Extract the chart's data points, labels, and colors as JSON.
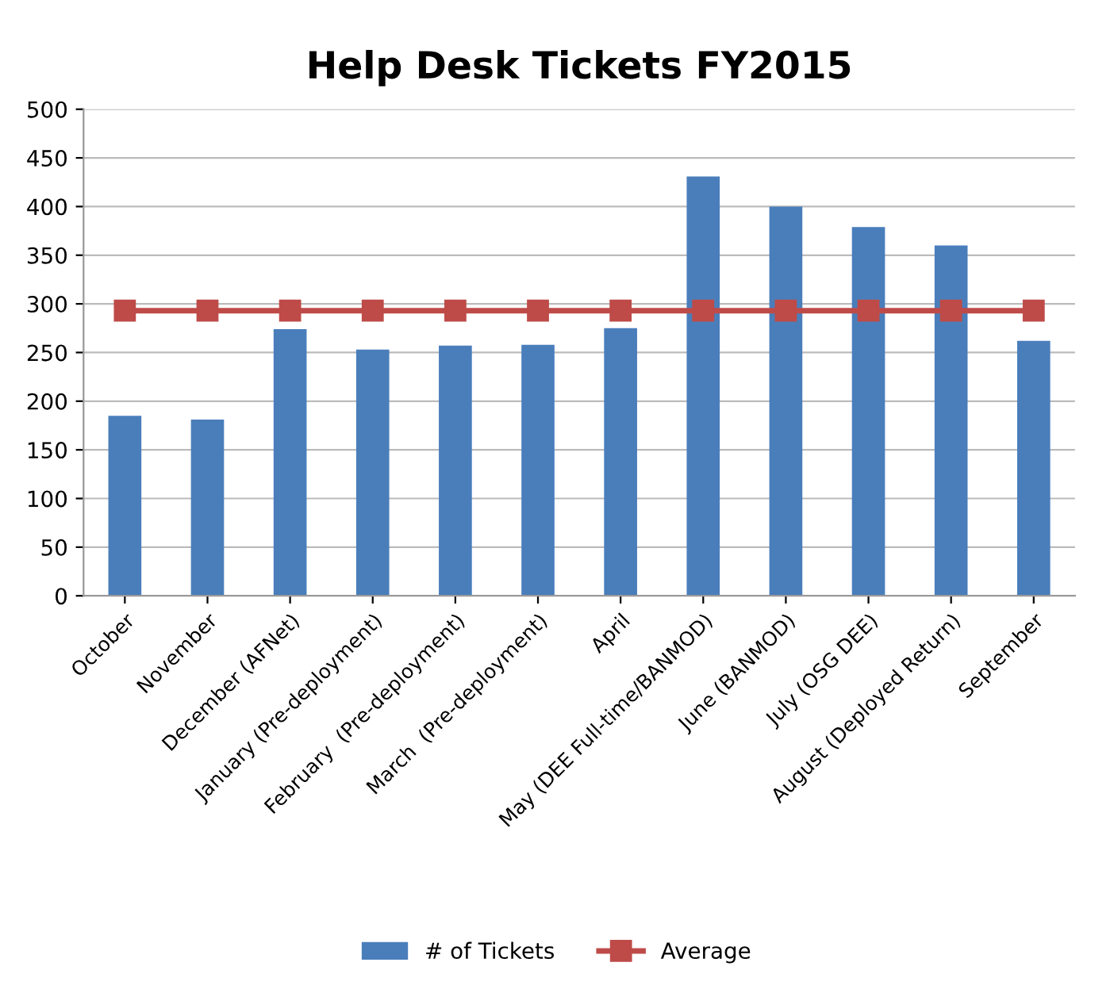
{
  "chart_data": {
    "type": "bar",
    "title": "Help Desk Tickets FY2015",
    "categories": [
      "October",
      "November",
      "December (AFNet)",
      "January (Pre-deployment)",
      "February  (Pre-deployment)",
      "March  (Pre-deployment)",
      "April",
      "May (DEE Full-time/BANMOD)",
      "June (BANMOD)",
      "July (OSG DEE)",
      "August (Deployed Return)",
      "September"
    ],
    "series": [
      {
        "name": "# of Tickets",
        "color": "#4a7ebb",
        "values": [
          185,
          181,
          274,
          253,
          257,
          258,
          275,
          431,
          400,
          379,
          360,
          262
        ]
      },
      {
        "name": "Average",
        "type": "line",
        "color": "#be4b48",
        "marker": "square",
        "values": [
          293,
          293,
          293,
          293,
          293,
          293,
          293,
          293,
          293,
          293,
          293,
          293
        ]
      }
    ],
    "ylim": [
      0,
      500
    ],
    "yticks": [
      0,
      50,
      100,
      150,
      200,
      250,
      300,
      350,
      400,
      450,
      500
    ],
    "grid": "y",
    "legend": "bottom"
  }
}
